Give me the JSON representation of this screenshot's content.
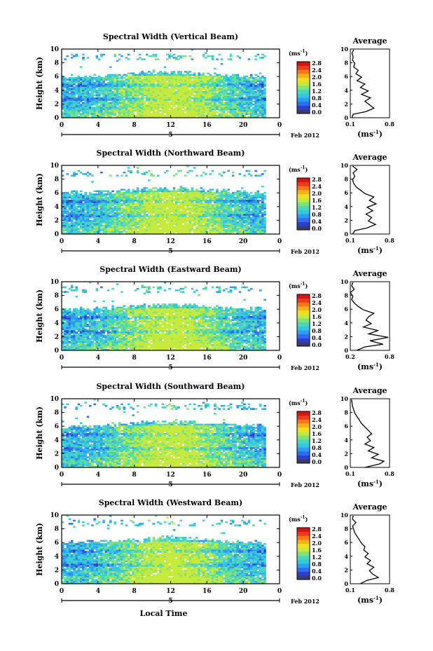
{
  "colors": {
    "scale": [
      "#3b3b6e",
      "#2b3fd0",
      "#2f6df0",
      "#2d9cf2",
      "#35c6e6",
      "#4ad9b8",
      "#7fe27a",
      "#c6ea3c",
      "#f2e020",
      "#f7b01a",
      "#f47a16",
      "#ec3a1a",
      "#d31612"
    ]
  },
  "shared": {
    "ylabel": "Height (km)",
    "yticks": [
      "0",
      "2",
      "4",
      "6",
      "8",
      "10"
    ],
    "xticks": [
      "0",
      "4",
      "8",
      "12",
      "16",
      "20",
      "0"
    ],
    "date_day": "5",
    "date_label": "Feb 2012",
    "colorbar_unit": "(ms",
    "colorbar_unit_sup": "-1",
    "colorbar_unit_close": ")",
    "avg_title": "Average",
    "avg_xlabel": "(ms",
    "avg_xlabel_sup": "-1",
    "avg_xlabel_close": ")",
    "xlabel": "Local Time"
  },
  "chart_data": [
    {
      "type": "heatmap",
      "title": "Spectral Width (Vertical Beam)",
      "xlim": [
        0,
        24
      ],
      "ylim": [
        0,
        10
      ],
      "colorbar_ticks": [
        "0.0",
        "0.4",
        "0.8",
        "1.2",
        "1.6",
        "2.0",
        "2.4",
        "2.8"
      ],
      "profile": {
        "xticks": [
          "0.1",
          "0.8"
        ],
        "xlim": [
          0.1,
          0.8
        ],
        "ylim": [
          0,
          10
        ],
        "x": [
          0.13,
          0.15,
          0.38,
          0.52,
          0.44,
          0.36,
          0.46,
          0.3,
          0.42,
          0.28,
          0.36,
          0.22,
          0.3,
          0.2,
          0.24,
          0.16,
          0.18,
          0.14,
          0.15,
          0.13,
          0.16
        ],
        "y": [
          0,
          0.5,
          0.9,
          1.4,
          1.9,
          2.4,
          2.9,
          3.4,
          3.9,
          4.4,
          4.9,
          5.4,
          5.9,
          6.4,
          6.9,
          7.4,
          7.9,
          8.4,
          8.9,
          9.4,
          9.9
        ]
      }
    },
    {
      "type": "heatmap",
      "title": "Spectral Width (Northward Beam)",
      "xlim": [
        0,
        24
      ],
      "ylim": [
        0,
        10
      ],
      "colorbar_ticks": [
        "0.0",
        "0.4",
        "0.8",
        "1.2",
        "1.6",
        "2.0",
        "2.4",
        "2.8"
      ],
      "profile": {
        "xticks": [
          "0.1",
          "0.8"
        ],
        "xlim": [
          0.1,
          0.8
        ],
        "ylim": [
          0,
          10
        ],
        "x": [
          0.14,
          0.18,
          0.4,
          0.55,
          0.42,
          0.48,
          0.38,
          0.5,
          0.4,
          0.56,
          0.44,
          0.52,
          0.36,
          0.28,
          0.2,
          0.16,
          0.14,
          0.18,
          0.15,
          0.22,
          0.14
        ],
        "y": [
          0,
          0.5,
          0.9,
          1.4,
          1.9,
          2.4,
          2.9,
          3.4,
          3.9,
          4.4,
          4.9,
          5.4,
          5.9,
          6.4,
          6.9,
          7.4,
          7.9,
          8.4,
          8.9,
          9.4,
          9.9
        ]
      }
    },
    {
      "type": "heatmap",
      "title": "Spectral Width (Eastward Beam)",
      "xlim": [
        0,
        24
      ],
      "ylim": [
        0,
        10
      ],
      "colorbar_ticks": [
        "0.0",
        "0.4",
        "0.8",
        "1.2",
        "1.6",
        "2.0",
        "2.4",
        "2.8"
      ],
      "profile": {
        "xticks": [
          "0.2",
          "0.8"
        ],
        "xlim": [
          0.2,
          0.8
        ],
        "ylim": [
          0,
          10
        ],
        "x": [
          0.3,
          0.42,
          0.7,
          0.5,
          0.78,
          0.48,
          0.62,
          0.4,
          0.52,
          0.44,
          0.48,
          0.56,
          0.4,
          0.32,
          0.26,
          0.22,
          0.24,
          0.2,
          0.26,
          0.22,
          0.24
        ],
        "y": [
          0,
          0.5,
          0.9,
          1.4,
          1.9,
          2.4,
          2.9,
          3.4,
          3.9,
          4.4,
          4.9,
          5.4,
          5.9,
          6.4,
          6.9,
          7.4,
          7.9,
          8.4,
          8.9,
          9.4,
          9.9
        ]
      }
    },
    {
      "type": "heatmap",
      "title": "Spectral Width (Southward Beam)",
      "xlim": [
        0,
        24
      ],
      "ylim": [
        0,
        10
      ],
      "colorbar_ticks": [
        "0.0",
        "0.4",
        "0.8",
        "1.2",
        "1.6",
        "2.0",
        "2.4",
        "2.8"
      ],
      "profile": {
        "xticks": [
          "0.1",
          "0.8"
        ],
        "xlim": [
          0.1,
          0.8
        ],
        "ylim": [
          0,
          10
        ],
        "x": [
          0.36,
          0.62,
          0.7,
          0.48,
          0.6,
          0.42,
          0.52,
          0.36,
          0.46,
          0.4,
          0.48,
          0.42,
          0.36,
          0.3,
          0.26,
          0.22,
          0.18,
          0.16,
          0.14,
          0.13,
          0.12
        ],
        "y": [
          0,
          0.5,
          0.9,
          1.4,
          1.9,
          2.4,
          2.9,
          3.4,
          3.9,
          4.4,
          4.9,
          5.4,
          5.9,
          6.4,
          6.9,
          7.4,
          7.9,
          8.4,
          8.9,
          9.4,
          9.9
        ]
      }
    },
    {
      "type": "heatmap",
      "title": "Spectral Width (Westward Beam)",
      "xlim": [
        0,
        24
      ],
      "ylim": [
        0,
        10
      ],
      "colorbar_ticks": [
        "0.0",
        "0.4",
        "0.8",
        "1.2",
        "1.6",
        "2.0",
        "2.4",
        "2.8"
      ],
      "profile": {
        "xticks": [
          "0.1",
          "0.8"
        ],
        "xlim": [
          0.1,
          0.8
        ],
        "ylim": [
          0,
          10
        ],
        "x": [
          0.28,
          0.4,
          0.6,
          0.5,
          0.44,
          0.52,
          0.4,
          0.46,
          0.36,
          0.42,
          0.34,
          0.36,
          0.3,
          0.26,
          0.22,
          0.18,
          0.16,
          0.14,
          0.2,
          0.14,
          0.15
        ],
        "y": [
          0,
          0.5,
          0.9,
          1.4,
          1.9,
          2.4,
          2.9,
          3.4,
          3.9,
          4.4,
          4.9,
          5.4,
          5.9,
          6.4,
          6.9,
          7.4,
          7.9,
          8.4,
          8.9,
          9.4,
          9.9
        ]
      }
    }
  ]
}
